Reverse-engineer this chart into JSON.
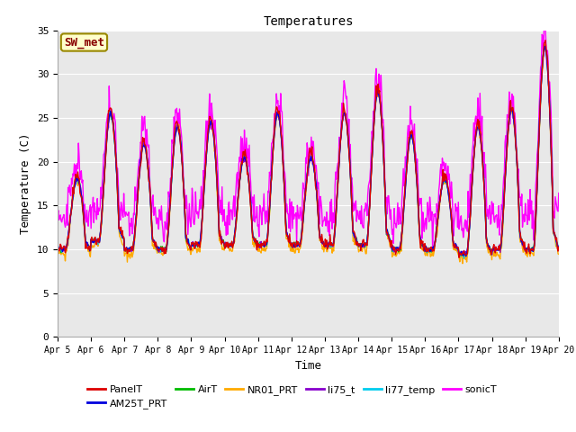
{
  "title": "Temperatures",
  "xlabel": "Time",
  "ylabel": "Temperature (C)",
  "ylim": [
    0,
    35
  ],
  "yticks": [
    0,
    5,
    10,
    15,
    20,
    25,
    30,
    35
  ],
  "series_info": {
    "PanelT": {
      "color": "#dd0000",
      "lw": 1.0
    },
    "AM25T_PRT": {
      "color": "#0000dd",
      "lw": 1.0
    },
    "AirT": {
      "color": "#00bb00",
      "lw": 1.0
    },
    "NR01_PRT": {
      "color": "#ffaa00",
      "lw": 1.0
    },
    "li75_t": {
      "color": "#8800cc",
      "lw": 1.0
    },
    "li77_temp": {
      "color": "#00ccee",
      "lw": 1.0
    },
    "sonicT": {
      "color": "#ff00ff",
      "lw": 1.0
    }
  },
  "legend_order": [
    "PanelT",
    "AM25T_PRT",
    "AirT",
    "NR01_PRT",
    "li75_t",
    "li77_temp",
    "sonicT"
  ],
  "sw_met_label": "SW_met",
  "sw_met_bg": "#ffffcc",
  "sw_met_edge": "#998800",
  "sw_met_text_color": "#880000",
  "plot_bg": "#e8e8e8",
  "grid_color": "#ffffff",
  "xtick_labels": [
    "Apr 5",
    "Apr 6",
    "Apr 7",
    "Apr 8",
    "Apr 9",
    "Apr 10",
    "Apr 11",
    "Apr 12",
    "Apr 13",
    "Apr 14",
    "Apr 15",
    "Apr 16",
    "Apr 17",
    "Apr 18",
    "Apr 19",
    "Apr 20"
  ],
  "font_size_title": 10,
  "font_size_ticks": 8,
  "font_size_label": 9,
  "font_size_legend": 8
}
